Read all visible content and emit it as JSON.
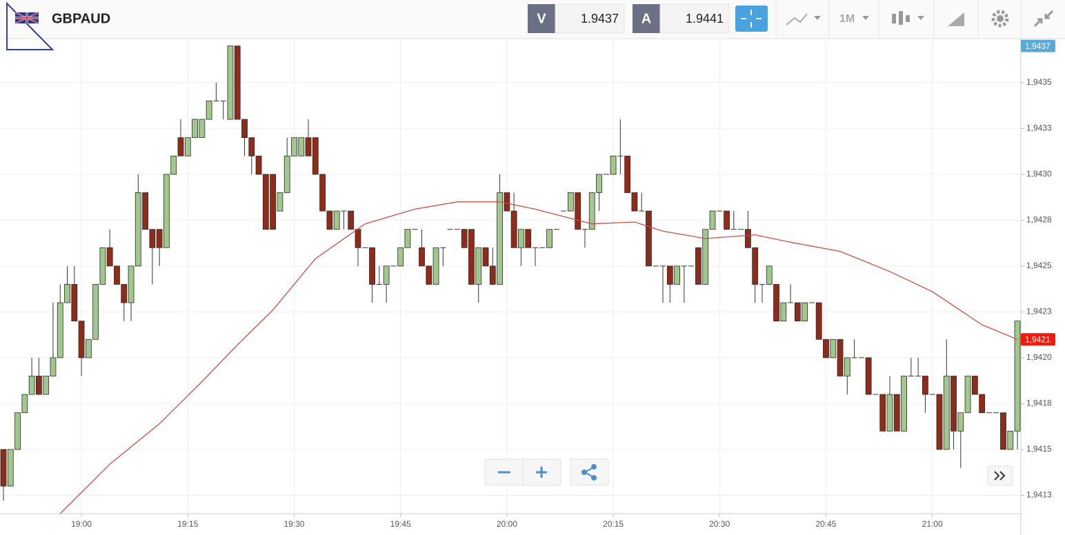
{
  "header": {
    "symbol": "GBPAUD",
    "bid_label": "V",
    "bid": "1.9437",
    "ask_label": "A",
    "ask": "1.9441",
    "timeframe": "1M"
  },
  "chart_data": {
    "type": "candlestick",
    "categories": [
      null,
      null,
      null,
      null,
      null,
      null,
      null,
      null,
      null,
      null,
      null,
      "19:00",
      null,
      null,
      null,
      null,
      null,
      null,
      null,
      null,
      null,
      null,
      null,
      null,
      null,
      null,
      "19:15",
      null,
      null,
      null,
      null,
      null,
      null,
      null,
      null,
      null,
      null,
      null,
      null,
      null,
      null,
      "19:30",
      null,
      null,
      null,
      null,
      null,
      null,
      null,
      null,
      null,
      null,
      null,
      null,
      null,
      null,
      "19:45",
      null,
      null,
      null,
      null,
      null,
      null,
      null,
      null,
      null,
      null,
      null,
      null,
      null,
      null,
      "20:00",
      null,
      null,
      null,
      null,
      null,
      null,
      null,
      null,
      null,
      null,
      null,
      null,
      null,
      null,
      "20:15",
      null,
      null,
      null,
      null,
      null,
      null,
      null,
      null,
      null,
      null,
      null,
      null,
      null,
      null,
      "20:30",
      null,
      null,
      null,
      null,
      null,
      null,
      null,
      null,
      null,
      null,
      null,
      null,
      null,
      null,
      "20:45",
      null,
      null,
      null,
      null,
      null,
      null,
      null,
      null,
      null,
      null,
      null,
      null,
      null,
      null,
      "21:00",
      null,
      null,
      null,
      null,
      null,
      null,
      null,
      null,
      null,
      null,
      null,
      null
    ],
    "open": [
      1.9415,
      1.9413,
      1.9415,
      1.9417,
      1.9418,
      1.9419,
      1.9418,
      1.9419,
      1.942,
      1.9423,
      1.9424,
      1.9422,
      1.942,
      1.9421,
      1.9424,
      1.9426,
      1.9425,
      1.9424,
      1.9423,
      1.9425,
      1.9429,
      1.9427,
      1.9427,
      1.9426,
      1.943,
      1.9432,
      1.9431,
      1.9432,
      1.9432,
      1.9433,
      1.9434,
      1.9434,
      1.9433,
      1.9437,
      1.9433,
      1.9432,
      1.9431,
      1.943,
      1.943,
      1.9428,
      1.9429,
      1.9431,
      1.9431,
      1.9432,
      1.9432,
      1.943,
      1.9428,
      1.9427,
      1.9428,
      1.9428,
      1.9427,
      1.9426,
      1.9426,
      1.9424,
      1.9424,
      1.9425,
      1.9425,
      1.9426,
      1.9427,
      1.9426,
      1.9425,
      1.9424,
      1.9426,
      1.9427,
      1.9427,
      1.9427,
      1.9427,
      1.9424,
      1.9426,
      1.9425,
      1.9424,
      1.9429,
      1.9428,
      1.9426,
      1.9427,
      1.9426,
      1.9426,
      1.9426,
      1.9427,
      1.9428,
      1.9428,
      1.9429,
      1.9427,
      1.9427,
      1.9429,
      1.943,
      1.943,
      1.9431,
      1.9431,
      1.9429,
      1.9428,
      1.9428,
      1.9425,
      1.9425,
      1.9425,
      1.9424,
      1.9425,
      1.9425,
      1.9426,
      1.9424,
      1.9427,
      1.9428,
      1.9428,
      1.9427,
      1.9427,
      1.9427,
      1.9426,
      1.9424,
      1.9424,
      1.9424,
      1.9422,
      1.9423,
      1.9423,
      1.9422,
      1.9423,
      1.9423,
      1.9421,
      1.942,
      1.9421,
      1.9419,
      1.942,
      1.942,
      1.942,
      1.9418,
      1.9418,
      1.9416,
      1.9418,
      1.9416,
      1.9419,
      1.9419,
      1.9419,
      1.9418,
      1.9418,
      1.9415,
      1.9419,
      1.9416,
      1.9417,
      1.9419,
      1.9418,
      1.9417,
      1.9417,
      1.9417,
      1.9415,
      1.9416
    ],
    "high": [
      1.9415,
      1.9415,
      1.9417,
      1.9418,
      1.942,
      1.942,
      1.9419,
      1.9423,
      1.9424,
      1.9425,
      1.9425,
      1.9422,
      1.9421,
      1.9424,
      1.9426,
      1.9427,
      1.9425,
      1.9424,
      1.9425,
      1.943,
      1.9429,
      1.9427,
      1.9427,
      1.943,
      1.9431,
      1.9433,
      1.9432,
      1.9433,
      1.9433,
      1.9434,
      1.9435,
      1.9434,
      1.9437,
      1.9437,
      1.9433,
      1.9432,
      1.9431,
      1.943,
      1.943,
      1.9429,
      1.9432,
      1.9432,
      1.9432,
      1.9433,
      1.9432,
      1.943,
      1.9428,
      1.9428,
      1.9428,
      1.9428,
      1.9427,
      1.9426,
      1.9426,
      1.9425,
      1.9425,
      1.9425,
      1.9426,
      1.9427,
      1.9427,
      1.9427,
      1.9425,
      1.9426,
      1.9426,
      1.9427,
      1.9427,
      1.9427,
      1.9427,
      1.9426,
      1.9426,
      1.9426,
      1.943,
      1.9429,
      1.9429,
      1.9427,
      1.9427,
      1.9426,
      1.9426,
      1.9427,
      1.9427,
      1.9428,
      1.9429,
      1.9429,
      1.9427,
      1.9429,
      1.943,
      1.943,
      1.9431,
      1.9433,
      1.9431,
      1.9429,
      1.9429,
      1.9428,
      1.9425,
      1.9425,
      1.9425,
      1.9425,
      1.9425,
      1.9425,
      1.9426,
      1.9427,
      1.9428,
      1.9428,
      1.9428,
      1.9428,
      1.9427,
      1.9428,
      1.9426,
      1.9424,
      1.9425,
      1.9424,
      1.9423,
      1.9424,
      1.9423,
      1.9423,
      1.9423,
      1.9423,
      1.9421,
      1.9421,
      1.9421,
      1.942,
      1.9421,
      1.942,
      1.942,
      1.9418,
      1.9418,
      1.9419,
      1.9418,
      1.9419,
      1.942,
      1.942,
      1.9419,
      1.9418,
      1.9418,
      1.9421,
      1.9419,
      1.9417,
      1.9419,
      1.9419,
      1.9418,
      1.9417,
      1.9417,
      1.9417,
      1.9416,
      1.9422
    ],
    "low": [
      1.94122,
      1.9413,
      1.9415,
      1.9417,
      1.9418,
      1.9418,
      1.9418,
      1.9419,
      1.942,
      1.9423,
      1.9422,
      1.9419,
      1.942,
      1.9421,
      1.9424,
      1.9425,
      1.9424,
      1.9422,
      1.9422,
      1.9425,
      1.9427,
      1.9424,
      1.9425,
      1.9426,
      1.943,
      1.9431,
      1.9431,
      1.9432,
      1.9432,
      1.9433,
      1.9434,
      1.9433,
      1.9433,
      1.9433,
      1.9431,
      1.943,
      1.943,
      1.9427,
      1.9427,
      1.9428,
      1.9429,
      1.9431,
      1.9431,
      1.9431,
      1.943,
      1.9428,
      1.9427,
      1.9427,
      1.9427,
      1.9427,
      1.9425,
      1.9426,
      1.9423,
      1.9424,
      1.9423,
      1.9425,
      1.9425,
      1.9426,
      1.9427,
      1.9425,
      1.9424,
      1.9424,
      1.9425,
      1.9427,
      1.9427,
      1.9426,
      1.9424,
      1.9423,
      1.9425,
      1.9424,
      1.9424,
      1.9428,
      1.9426,
      1.9425,
      1.9426,
      1.9425,
      1.9426,
      1.9426,
      1.9427,
      1.9428,
      1.9428,
      1.9427,
      1.9426,
      1.9427,
      1.9428,
      1.943,
      1.943,
      1.943,
      1.9429,
      1.9428,
      1.9428,
      1.9425,
      1.9425,
      1.9423,
      1.9423,
      1.9424,
      1.9423,
      1.9425,
      1.9424,
      1.9424,
      1.9427,
      1.9428,
      1.9427,
      1.9427,
      1.9427,
      1.9426,
      1.9423,
      1.9423,
      1.9424,
      1.9422,
      1.9422,
      1.9423,
      1.9422,
      1.9422,
      1.9423,
      1.9421,
      1.942,
      1.942,
      1.9419,
      1.9418,
      1.942,
      1.942,
      1.9418,
      1.9418,
      1.9416,
      1.9416,
      1.9416,
      1.9416,
      1.9419,
      1.9419,
      1.9417,
      1.9418,
      1.9415,
      1.9415,
      1.9415,
      1.9414,
      1.9417,
      1.9418,
      1.9417,
      1.9417,
      1.9417,
      1.9415,
      1.9415,
      1.9415
    ],
    "close": [
      1.9413,
      1.9415,
      1.9417,
      1.9418,
      1.9419,
      1.9418,
      1.9419,
      1.942,
      1.9423,
      1.9424,
      1.9422,
      1.942,
      1.9421,
      1.9424,
      1.9426,
      1.9425,
      1.9424,
      1.9423,
      1.9425,
      1.9429,
      1.9427,
      1.9426,
      1.9426,
      1.943,
      1.9431,
      1.9431,
      1.9432,
      1.9433,
      1.9433,
      1.9434,
      1.9434,
      1.9434,
      1.9437,
      1.9433,
      1.9432,
      1.9431,
      1.943,
      1.9427,
      1.9427,
      1.9429,
      1.9431,
      1.9432,
      1.9432,
      1.9431,
      1.943,
      1.9428,
      1.9427,
      1.9428,
      1.9428,
      1.9427,
      1.9426,
      1.9426,
      1.9424,
      1.9424,
      1.9425,
      1.9425,
      1.9426,
      1.9427,
      1.9427,
      1.9425,
      1.9424,
      1.9426,
      1.9426,
      1.9427,
      1.9427,
      1.9426,
      1.9424,
      1.9426,
      1.9425,
      1.9424,
      1.9429,
      1.9428,
      1.9426,
      1.9427,
      1.9426,
      1.9426,
      1.9426,
      1.9427,
      1.9427,
      1.9428,
      1.9429,
      1.9427,
      1.9427,
      1.9429,
      1.943,
      1.943,
      1.9431,
      1.9431,
      1.9429,
      1.9428,
      1.9428,
      1.9425,
      1.9425,
      1.9425,
      1.9424,
      1.9425,
      1.9425,
      1.9425,
      1.9424,
      1.9427,
      1.9428,
      1.9428,
      1.9427,
      1.9427,
      1.9427,
      1.9426,
      1.9424,
      1.9424,
      1.9425,
      1.9422,
      1.9423,
      1.9423,
      1.9422,
      1.9423,
      1.9423,
      1.9421,
      1.942,
      1.9421,
      1.9419,
      1.942,
      1.942,
      1.942,
      1.9418,
      1.9418,
      1.9416,
      1.9418,
      1.9416,
      1.9419,
      1.9419,
      1.9419,
      1.9418,
      1.9418,
      1.9415,
      1.9419,
      1.9416,
      1.9417,
      1.9419,
      1.9418,
      1.9417,
      1.9417,
      1.9417,
      1.9415,
      1.9416,
      1.9422
    ],
    "up_color": "#a2c78c",
    "down_color": "#8e2c1b",
    "moving_average": {
      "color": "#cf4b43",
      "x": [
        8,
        15,
        22,
        28,
        33,
        38,
        44,
        51,
        58,
        64,
        70,
        75,
        83,
        89,
        93,
        99,
        106,
        111,
        118,
        125,
        131,
        138,
        143
      ],
      "values": [
        1.94115,
        1.94142,
        1.94164,
        1.94187,
        1.94207,
        1.94226,
        1.94254,
        1.94273,
        1.94281,
        1.94285,
        1.94285,
        1.94281,
        1.94273,
        1.94274,
        1.94269,
        1.94265,
        1.94267,
        1.94263,
        1.94258,
        1.94247,
        1.94236,
        1.94218,
        1.9421
      ]
    },
    "ylim": [
      1.94115,
      1.94374
    ],
    "yticks": [
      {
        "value": 1.94125,
        "label": "1,9413"
      },
      {
        "value": 1.9415,
        "label": "1,9415"
      },
      {
        "value": 1.94175,
        "label": "1,9418"
      },
      {
        "value": 1.942,
        "label": "1,9420"
      },
      {
        "value": 1.94225,
        "label": "1,9423"
      },
      {
        "value": 1.9425,
        "label": "1,9425"
      },
      {
        "value": 1.94275,
        "label": "1,9428"
      },
      {
        "value": 1.943,
        "label": "1,9430"
      },
      {
        "value": 1.94325,
        "label": "1,9433"
      },
      {
        "value": 1.9435,
        "label": "1,9435"
      }
    ],
    "price_tags": [
      {
        "value": 1.9437,
        "label": "1,9437",
        "color": "#5aaad6"
      },
      {
        "value": 1.9421,
        "label": "1,9421",
        "color": "#ee1c0e"
      }
    ],
    "grid": true
  }
}
